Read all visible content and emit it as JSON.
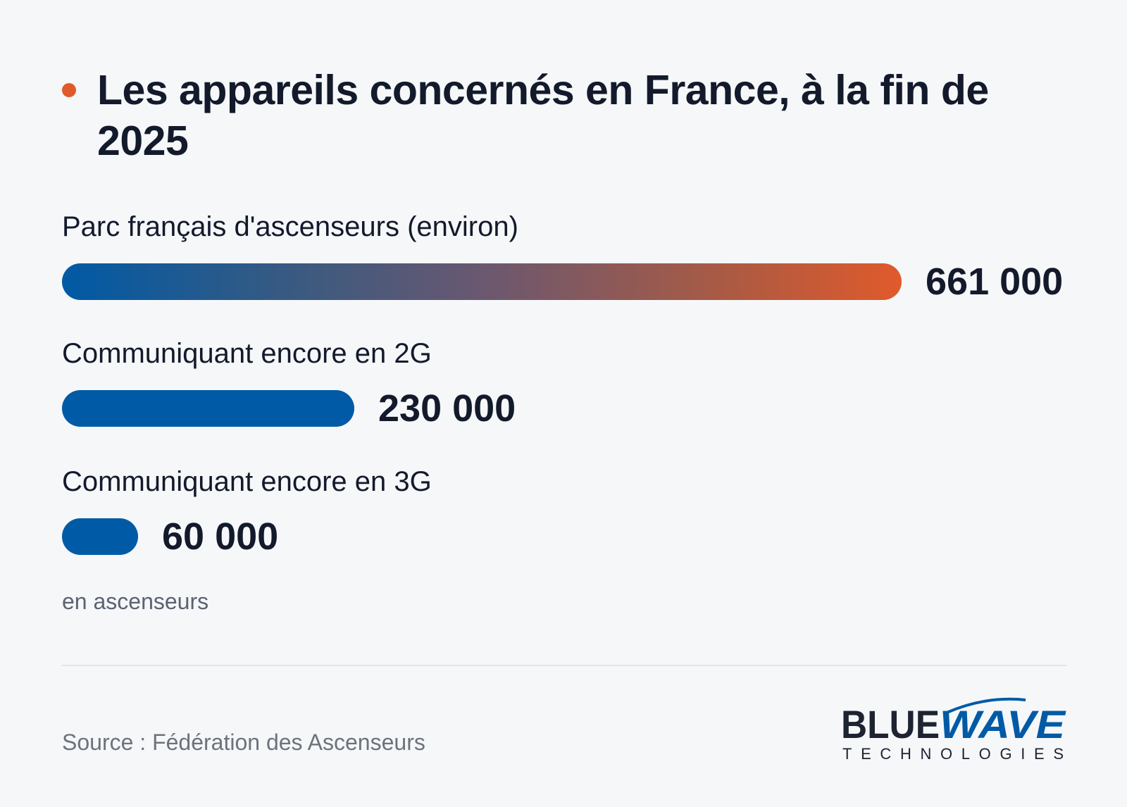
{
  "title": "Les appareils concernés en France, à la fin de 2025",
  "colors": {
    "bar": "#005aa5",
    "gradient_end": "#e05a2b",
    "bullet": "#e05a2b",
    "text": "#131a2b"
  },
  "chart_data": {
    "type": "bar",
    "orientation": "horizontal",
    "categories": [
      "Parc français d'ascenseurs (environ)",
      "Communiquant encore en 2G",
      "Communiquant encore en 3G"
    ],
    "values": [
      661000,
      230000,
      60000
    ],
    "value_labels": [
      "661 000",
      "230 000",
      "60 000"
    ],
    "unit_note": "en ascenseurs",
    "grid": false,
    "legend": "none"
  },
  "footer": {
    "source": "Source : Fédération des Ascenseurs",
    "logo_word1": "BLUE",
    "logo_word2": "WAVE",
    "logo_tagline": "TECHNOLOGIES"
  }
}
